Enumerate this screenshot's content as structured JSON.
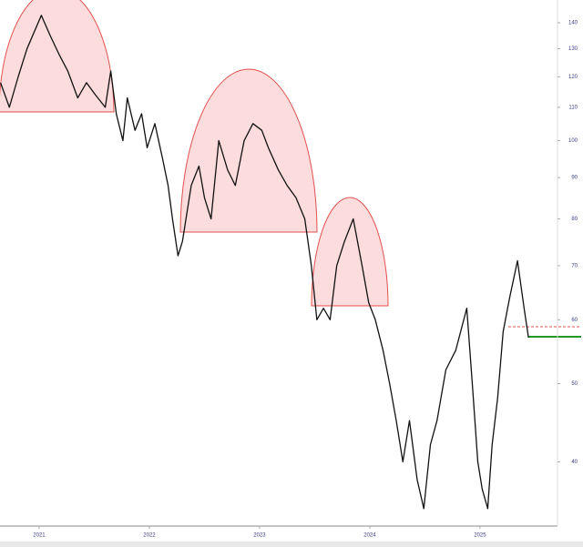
{
  "chart_data": {
    "type": "line",
    "log": true,
    "color": "#111111",
    "x": [
      2020.65,
      2020.73,
      2020.81,
      2020.89,
      2021.02,
      2021.1,
      2021.18,
      2021.26,
      2021.35,
      2021.43,
      2021.51,
      2021.6,
      2021.65,
      2021.7,
      2021.76,
      2021.8,
      2021.87,
      2021.93,
      2021.98,
      2022.05,
      2022.12,
      2022.17,
      2022.21,
      2022.26,
      2022.3,
      2022.38,
      2022.45,
      2022.5,
      2022.56,
      2022.63,
      2022.71,
      2022.78,
      2022.86,
      2022.94,
      2023.02,
      2023.08,
      2023.17,
      2023.25,
      2023.33,
      2023.41,
      2023.47,
      2023.52,
      2023.58,
      2023.64,
      2023.7,
      2023.77,
      2023.85,
      2023.93,
      2023.99,
      2024.05,
      2024.12,
      2024.18,
      2024.24,
      2024.3,
      2024.36,
      2024.43,
      2024.49,
      2024.55,
      2024.61,
      2024.69,
      2024.78,
      2024.88,
      2024.93,
      2024.98,
      2025.02,
      2025.07,
      2025.11,
      2025.16,
      2025.21,
      2025.27,
      2025.34,
      2025.4,
      2025.44
    ],
    "values": [
      118,
      110,
      120,
      130,
      143,
      135,
      128,
      122,
      113,
      118,
      114,
      110,
      122,
      108,
      100,
      113,
      103,
      108,
      98,
      105,
      95,
      88,
      80,
      72,
      75,
      88,
      93,
      85,
      80,
      100,
      92,
      88,
      100,
      105,
      103,
      98,
      92,
      88,
      85,
      80,
      70,
      60,
      62,
      60,
      70,
      75,
      80,
      70,
      63,
      60,
      55,
      50,
      45,
      40,
      45,
      38,
      35,
      42,
      45,
      52,
      55,
      62,
      50,
      40,
      37,
      35,
      42,
      48,
      58,
      64,
      71,
      62,
      57
    ],
    "xlim": [
      2020.645,
      2025.703
    ],
    "xticks": [
      2021,
      2022,
      2023,
      2024,
      2025
    ],
    "ylim": [
      33.3,
      149.4
    ],
    "yticks": [
      40,
      50,
      60,
      70,
      80,
      90,
      100,
      110,
      120,
      130,
      140
    ]
  }
}
